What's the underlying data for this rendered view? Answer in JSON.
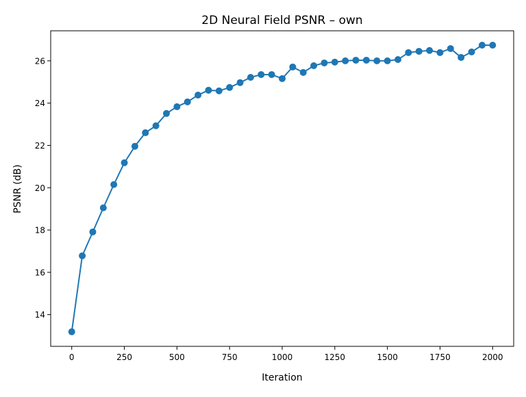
{
  "chart_data": {
    "type": "line",
    "title": "2D Neural Field PSNR – own",
    "xlabel": "Iteration",
    "ylabel": "PSNR (dB)",
    "xlim": [
      -100,
      2100
    ],
    "ylim": [
      12.5,
      27.42
    ],
    "xticks": [
      0,
      250,
      500,
      750,
      1000,
      1250,
      1500,
      1750,
      2000
    ],
    "yticks": [
      14,
      16,
      18,
      20,
      22,
      24,
      26
    ],
    "grid": false,
    "marker": "circle",
    "color": "#1f77b4",
    "x": [
      0,
      50,
      100,
      150,
      200,
      250,
      300,
      350,
      400,
      450,
      500,
      550,
      600,
      650,
      700,
      750,
      800,
      850,
      900,
      950,
      1000,
      1050,
      1100,
      1150,
      1200,
      1250,
      1300,
      1350,
      1400,
      1450,
      1500,
      1550,
      1600,
      1650,
      1700,
      1750,
      1800,
      1850,
      1900,
      1950,
      2000
    ],
    "y": [
      13.19,
      16.78,
      17.91,
      19.05,
      20.15,
      21.18,
      21.96,
      22.6,
      22.93,
      23.51,
      23.83,
      24.06,
      24.38,
      24.61,
      24.58,
      24.74,
      24.97,
      25.22,
      25.35,
      25.35,
      25.16,
      25.71,
      25.45,
      25.77,
      25.9,
      25.94,
      26.0,
      26.03,
      26.03,
      26.0,
      26.0,
      26.06,
      26.39,
      26.45,
      26.49,
      26.39,
      26.58,
      26.16,
      26.42,
      26.74,
      26.74
    ]
  }
}
